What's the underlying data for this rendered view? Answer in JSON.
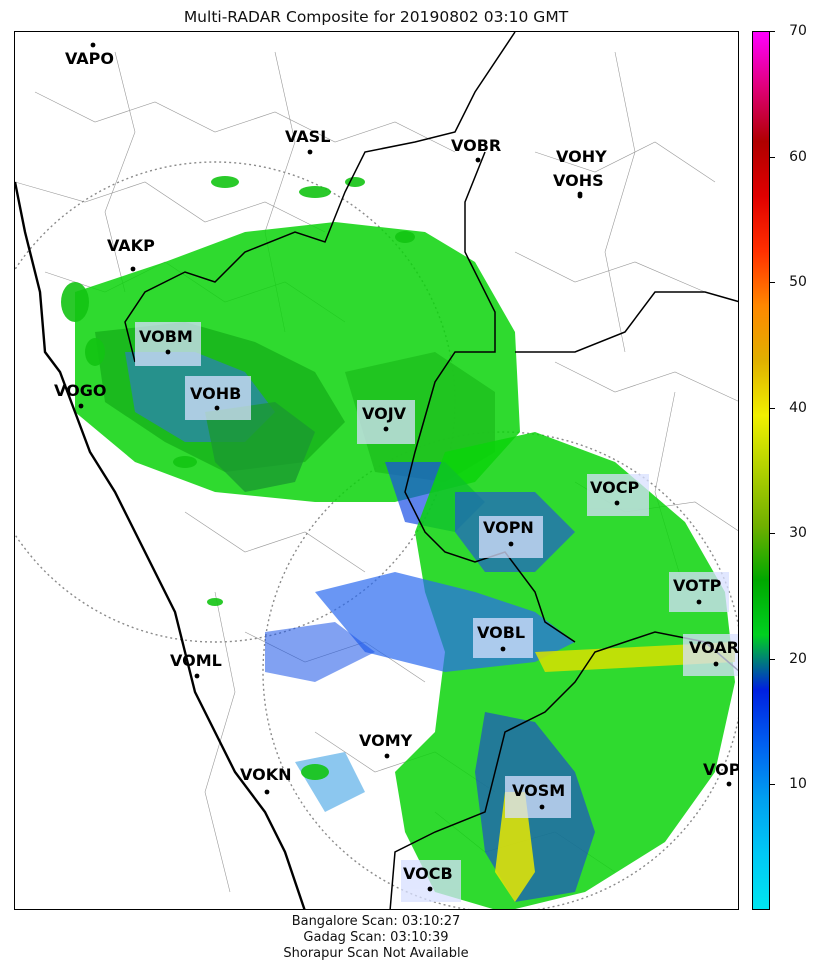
{
  "title": "Multi-RADAR Composite for 20190802 03:10 GMT",
  "colorbar": {
    "ticks": [
      10,
      20,
      30,
      40,
      50,
      60,
      70
    ],
    "range": [
      0,
      70
    ],
    "colors": [
      "#00e5f0",
      "#00c8f5",
      "#00a0f0",
      "#0060f0",
      "#0020e0",
      "#00d020",
      "#00a800",
      "#70b000",
      "#b0d000",
      "#f0f000",
      "#e0b000",
      "#ff8800",
      "#ff3000",
      "#e00000",
      "#b00000",
      "#e0007a",
      "#ff00ff"
    ]
  },
  "stations": [
    {
      "id": "VAPO",
      "highlight": false
    },
    {
      "id": "VASL",
      "highlight": false
    },
    {
      "id": "VOBR",
      "highlight": false
    },
    {
      "id": "VOHY",
      "highlight": false
    },
    {
      "id": "VOHS",
      "highlight": false
    },
    {
      "id": "VAKP",
      "highlight": false
    },
    {
      "id": "VOBM",
      "highlight": true
    },
    {
      "id": "VOGO",
      "highlight": false
    },
    {
      "id": "VOHB",
      "highlight": true
    },
    {
      "id": "VOJV",
      "highlight": true
    },
    {
      "id": "VOCP",
      "highlight": true
    },
    {
      "id": "VOPN",
      "highlight": true
    },
    {
      "id": "VOTP",
      "highlight": true
    },
    {
      "id": "VOBL",
      "highlight": true
    },
    {
      "id": "VOAR",
      "highlight": true
    },
    {
      "id": "VOML",
      "highlight": false
    },
    {
      "id": "VOMY",
      "highlight": false
    },
    {
      "id": "VOKN",
      "highlight": false
    },
    {
      "id": "VOPC",
      "highlight": false
    },
    {
      "id": "VOSM",
      "highlight": true
    },
    {
      "id": "VOCB",
      "highlight": true
    }
  ],
  "footer": {
    "line1": "Bangalore Scan: 03:10:27",
    "line2": "Gadag Scan: 03:10:39",
    "line3": "Shorapur Scan Not Available"
  }
}
